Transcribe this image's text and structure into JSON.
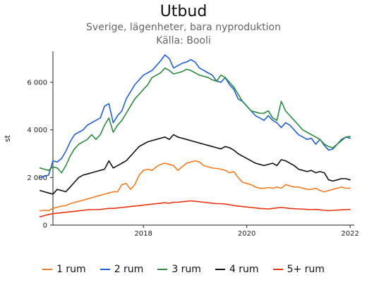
{
  "chart_data": {
    "type": "line",
    "title": "Utbud",
    "subtitle": "Sverige, lägenheter, bara nyproduktion",
    "source": "Källa: Booli",
    "ylabel": "st",
    "xlabel": "",
    "x_start": "2016-01",
    "x_end": "2022-01",
    "xlim": [
      2016.25,
      2022.08
    ],
    "ylim": [
      0,
      7300
    ],
    "x_ticks": [
      2018,
      2020,
      2022
    ],
    "x_tick_labels": [
      "2018",
      "2020",
      "2022"
    ],
    "y_ticks": [
      0,
      2000,
      4000,
      6000
    ],
    "y_tick_labels": [
      "0",
      "2 000",
      "4 000",
      "6 000"
    ],
    "grid": false,
    "legend_position": "bottom",
    "series": [
      {
        "name": "1 rum",
        "color": "#f47b20",
        "values": [
          600,
          620,
          610,
          700,
          750,
          800,
          820,
          900,
          950,
          1000,
          1050,
          1100,
          1150,
          1200,
          1250,
          1300,
          1350,
          1400,
          1400,
          1700,
          1750,
          1500,
          1700,
          2100,
          2300,
          2350,
          2300,
          2450,
          2550,
          2600,
          2550,
          2500,
          2300,
          2450,
          2600,
          2650,
          2700,
          2650,
          2500,
          2450,
          2400,
          2380,
          2350,
          2300,
          2200,
          2250,
          2000,
          1800,
          1750,
          1700,
          1600,
          1550,
          1550,
          1580,
          1550,
          1600,
          1550,
          1700,
          1650,
          1600,
          1600,
          1550,
          1500,
          1500,
          1550,
          1450,
          1400,
          1450,
          1500,
          1550,
          1600,
          1550,
          1550
        ]
      },
      {
        "name": "2 rum",
        "color": "#1f5fd6",
        "values": [
          2000,
          2050,
          2100,
          2700,
          2650,
          2800,
          3100,
          3500,
          3800,
          3900,
          4000,
          4200,
          4300,
          4400,
          4500,
          5000,
          5100,
          4300,
          4600,
          4800,
          5300,
          5600,
          5900,
          6100,
          6300,
          6400,
          6500,
          6700,
          6900,
          7150,
          7000,
          6600,
          6700,
          6800,
          6850,
          6950,
          6850,
          6600,
          6500,
          6400,
          6300,
          6050,
          6000,
          6200,
          5900,
          5700,
          5300,
          5200,
          5000,
          4800,
          4600,
          4500,
          4400,
          4600,
          4400,
          4300,
          4100,
          4300,
          4200,
          4000,
          3800,
          3700,
          3600,
          3650,
          3400,
          3600,
          3350,
          3150,
          3200,
          3400,
          3600,
          3700,
          3650
        ]
      },
      {
        "name": "3 rum",
        "color": "#2a8a3e",
        "values": [
          2400,
          2350,
          2300,
          2450,
          2400,
          2200,
          2500,
          2900,
          3200,
          3400,
          3500,
          3600,
          3800,
          3600,
          3800,
          4200,
          4500,
          3900,
          4200,
          4400,
          4700,
          5000,
          5300,
          5500,
          5700,
          5900,
          6200,
          6300,
          6400,
          6600,
          6500,
          6350,
          6400,
          6450,
          6550,
          6500,
          6400,
          6300,
          6250,
          6200,
          6100,
          6050,
          6300,
          6200,
          6000,
          5800,
          5500,
          5200,
          5000,
          4800,
          4750,
          4700,
          4700,
          4800,
          4500,
          4400,
          5200,
          4800,
          4600,
          4400,
          4200,
          4000,
          3900,
          3800,
          3700,
          3600,
          3400,
          3300,
          3250,
          3400,
          3550,
          3700,
          3720
        ]
      },
      {
        "name": "4 rum",
        "color": "#111111",
        "values": [
          1450,
          1400,
          1350,
          1300,
          1500,
          1450,
          1400,
          1600,
          1800,
          2000,
          2100,
          2150,
          2200,
          2250,
          2300,
          2350,
          2700,
          2400,
          2500,
          2600,
          2700,
          2900,
          3100,
          3300,
          3400,
          3500,
          3550,
          3600,
          3650,
          3700,
          3600,
          3800,
          3700,
          3650,
          3600,
          3550,
          3500,
          3450,
          3400,
          3350,
          3300,
          3250,
          3200,
          3300,
          3250,
          3150,
          3000,
          2900,
          2800,
          2700,
          2600,
          2550,
          2500,
          2550,
          2600,
          2500,
          2750,
          2700,
          2600,
          2500,
          2350,
          2300,
          2250,
          2300,
          2200,
          2250,
          2200,
          1900,
          1850,
          1900,
          1950,
          1950,
          1900
        ]
      },
      {
        "name": "5+ rum",
        "color": "#e63312",
        "values": [
          350,
          400,
          450,
          480,
          500,
          520,
          540,
          560,
          580,
          600,
          620,
          640,
          650,
          650,
          660,
          680,
          700,
          700,
          720,
          740,
          760,
          780,
          800,
          820,
          840,
          860,
          880,
          900,
          920,
          940,
          920,
          960,
          960,
          980,
          1000,
          1020,
          1000,
          980,
          960,
          940,
          920,
          900,
          900,
          880,
          860,
          820,
          800,
          780,
          760,
          740,
          720,
          700,
          690,
          680,
          700,
          720,
          740,
          720,
          700,
          690,
          680,
          670,
          660,
          650,
          660,
          640,
          620,
          610,
          620,
          630,
          640,
          650,
          660
        ]
      }
    ]
  }
}
